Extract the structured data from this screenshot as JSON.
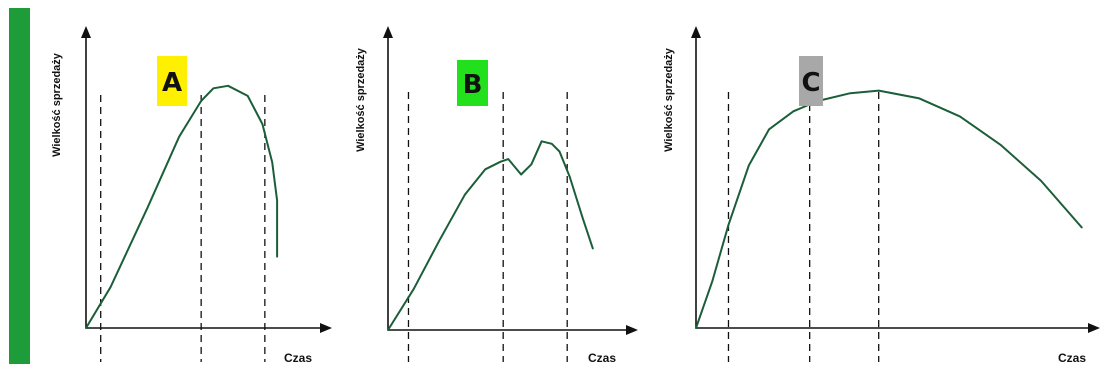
{
  "accent_color": "#1f9c3a",
  "line_color": "#1b5e3a",
  "chart_data": [
    {
      "type": "line",
      "title": "A",
      "badge_color": "#ffef00",
      "xlabel": "Czas",
      "ylabel": "Wielkość sprzedaży",
      "xlim": [
        0,
        100
      ],
      "ylim": [
        0,
        100
      ],
      "guides": [
        6,
        47,
        73
      ],
      "series": [
        {
          "x": [
            0,
            10,
            25,
            38,
            47,
            52,
            58,
            66,
            72,
            76,
            78,
            78
          ],
          "y": [
            0,
            16,
            47,
            75,
            89,
            94,
            95,
            91,
            80,
            65,
            50,
            28
          ]
        }
      ]
    },
    {
      "type": "line",
      "title": "B",
      "badge_color": "#22e01c",
      "xlabel": "Czas",
      "ylabel": "Wielkość sprzedaży",
      "xlim": [
        0,
        100
      ],
      "ylim": [
        0,
        100
      ],
      "guides": [
        8,
        45,
        70
      ],
      "series": [
        {
          "x": [
            0,
            10,
            20,
            30,
            38,
            44,
            47,
            52,
            56,
            60,
            64,
            67,
            71,
            76,
            80
          ],
          "y": [
            0,
            16,
            35,
            53,
            63,
            66,
            67,
            61,
            65,
            74,
            73,
            70,
            60,
            44,
            32
          ]
        }
      ]
    },
    {
      "type": "line",
      "title": "C",
      "badge_color": "#a8a8a8",
      "xlabel": "Czas",
      "ylabel": "Wielkość sprzedaży",
      "xlim": [
        0,
        100
      ],
      "ylim": [
        0,
        100
      ],
      "guides": [
        8,
        28,
        45
      ],
      "series": [
        {
          "x": [
            0,
            4,
            8,
            13,
            18,
            24,
            30,
            38,
            45,
            55,
            65,
            75,
            85,
            95
          ],
          "y": [
            0,
            18,
            40,
            63,
            77,
            84,
            88,
            91,
            92,
            89,
            82,
            71,
            57,
            39
          ]
        }
      ]
    }
  ]
}
